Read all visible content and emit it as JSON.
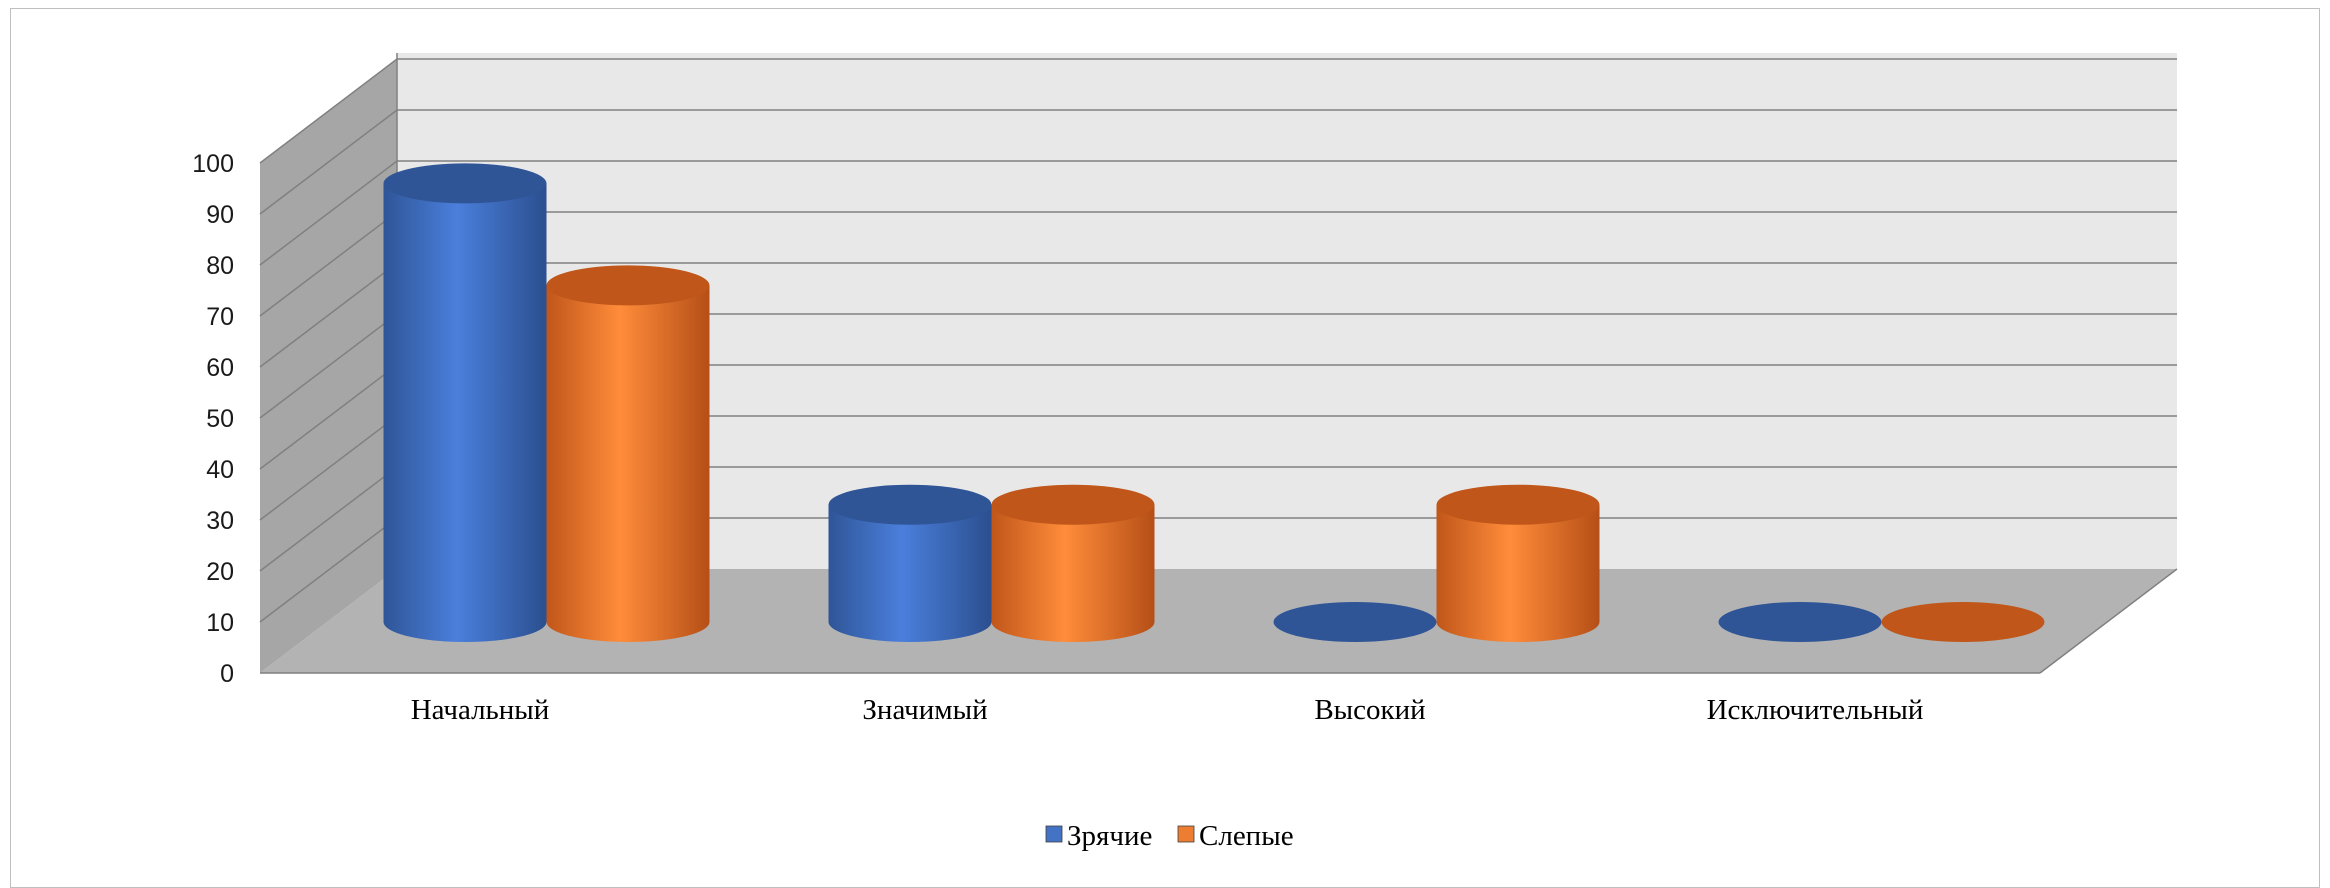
{
  "chart_data": {
    "type": "bar",
    "style": "3d-cylinder",
    "categories": [
      "Начальный",
      "Значимый",
      "Высокий",
      "Исключительный"
    ],
    "series": [
      {
        "name": "Зрячие",
        "values": [
          86,
          23,
          0,
          0
        ],
        "color": "#4472c4"
      },
      {
        "name": "Слепые",
        "values": [
          66,
          23,
          23,
          0
        ],
        "color": "#ed7d31"
      }
    ],
    "ylim": [
      0,
      100
    ],
    "yticks": [
      "0",
      "10",
      "20",
      "30",
      "40",
      "50",
      "60",
      "70",
      "80",
      "90",
      "100"
    ],
    "grid": true,
    "legend_position": "bottom"
  }
}
